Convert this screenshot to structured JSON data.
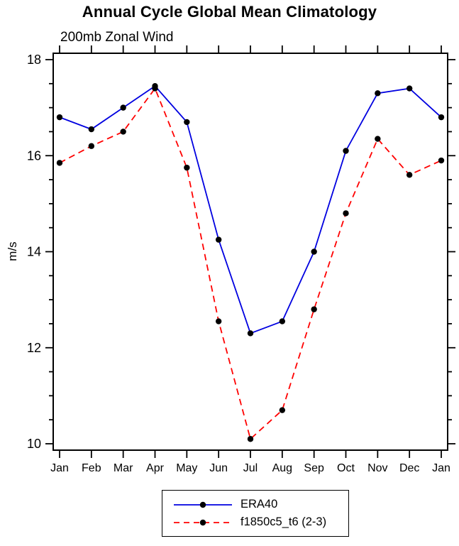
{
  "title": "Annual Cycle Global Mean Climatology",
  "subtitle": "200mb Zonal Wind",
  "chart_data": {
    "type": "line",
    "title": "Annual Cycle Global Mean Climatology",
    "subtitle": "200mb Zonal Wind",
    "xlabel": "",
    "ylabel": "m/s",
    "x_tick_labels": [
      "Jan",
      "Feb",
      "Mar",
      "Apr",
      "May",
      "Jun",
      "Jul",
      "Aug",
      "Sep",
      "Oct",
      "Nov",
      "Dec",
      "Jan"
    ],
    "y_ticks": [
      10,
      12,
      14,
      16,
      18
    ],
    "ylim": [
      10,
      18
    ],
    "y_minor_step": 0.5,
    "grid": false,
    "legend_position": "bottom-center",
    "marker": {
      "shape": "circle",
      "color": "#000000",
      "radius": 4.2
    },
    "series": [
      {
        "name": "ERA40",
        "color": "#0000e0",
        "style": "solid",
        "values": [
          16.8,
          16.55,
          17.0,
          17.45,
          16.7,
          14.25,
          12.3,
          12.55,
          14.0,
          16.1,
          17.3,
          17.4,
          16.8
        ]
      },
      {
        "name": "f1850c5_t6 (2-3)",
        "color": "#ff0000",
        "style": "dashed",
        "values": [
          15.85,
          16.2,
          16.5,
          17.4,
          15.75,
          12.55,
          10.1,
          10.7,
          12.8,
          14.8,
          16.35,
          15.6,
          15.9
        ]
      }
    ]
  },
  "legend": {
    "entries": [
      {
        "label": "ERA40"
      },
      {
        "label": "f1850c5_t6 (2-3)"
      }
    ]
  }
}
